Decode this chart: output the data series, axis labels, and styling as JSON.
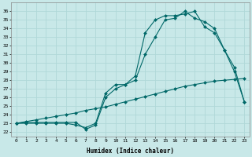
{
  "xlabel": "Humidex (Indice chaleur)",
  "bg_color": "#c8e8e8",
  "grid_color": "#b0d8d8",
  "line_color": "#006868",
  "xlim": [
    -0.5,
    23.5
  ],
  "ylim": [
    21.5,
    37.0
  ],
  "xticks": [
    0,
    1,
    2,
    3,
    4,
    5,
    6,
    7,
    8,
    9,
    10,
    11,
    12,
    13,
    14,
    15,
    16,
    17,
    18,
    19,
    20,
    21,
    22,
    23
  ],
  "yticks": [
    22,
    23,
    24,
    25,
    26,
    27,
    28,
    29,
    30,
    31,
    32,
    33,
    34,
    35,
    36
  ],
  "line1_x": [
    0,
    1,
    2,
    3,
    4,
    5,
    6,
    7,
    8,
    9,
    10,
    11,
    12,
    13,
    14,
    15,
    16,
    17,
    18,
    19,
    20,
    21,
    22,
    23
  ],
  "line1_y": [
    23.0,
    23.2,
    23.4,
    23.6,
    23.8,
    24.0,
    24.2,
    24.5,
    24.7,
    24.9,
    25.2,
    25.5,
    25.8,
    26.1,
    26.4,
    26.7,
    27.0,
    27.3,
    27.5,
    27.7,
    27.9,
    28.0,
    28.1,
    28.2
  ],
  "line2_x": [
    0,
    1,
    2,
    3,
    4,
    5,
    6,
    7,
    8,
    9,
    10,
    11,
    12,
    13,
    14,
    15,
    16,
    17,
    18,
    19,
    20,
    21,
    22,
    23
  ],
  "line2_y": [
    23.0,
    23.0,
    23.0,
    23.0,
    23.0,
    23.0,
    22.8,
    22.5,
    23.0,
    26.5,
    27.5,
    27.5,
    28.0,
    31.0,
    33.0,
    35.0,
    35.2,
    36.0,
    35.2,
    34.8,
    34.0,
    31.5,
    29.5,
    25.5
  ],
  "line3_x": [
    0,
    1,
    2,
    3,
    4,
    5,
    6,
    7,
    8,
    9,
    10,
    11,
    12,
    13,
    14,
    15,
    16,
    17,
    18,
    19,
    20,
    21,
    22,
    23
  ],
  "line3_y": [
    23.0,
    23.1,
    23.1,
    23.1,
    23.1,
    23.1,
    23.1,
    22.3,
    22.8,
    26.0,
    27.0,
    27.5,
    28.5,
    33.5,
    35.0,
    35.5,
    35.5,
    35.7,
    36.0,
    34.2,
    33.5,
    31.5,
    29.0,
    25.5
  ]
}
